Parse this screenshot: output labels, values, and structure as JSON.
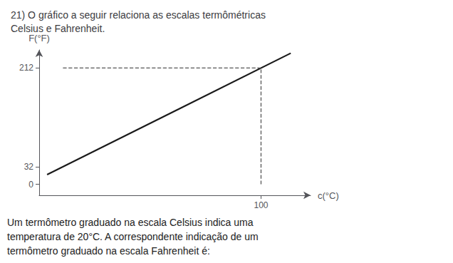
{
  "chart_data": {
    "type": "line",
    "title": "21) O gráfico a seguir relaciona as escalas termômétricas\nCelsius e Fahrenheit.",
    "xlabel": "c(°C)",
    "ylabel": "F(°F)",
    "xlim": [
      -12,
      125
    ],
    "ylim": [
      -20,
      245
    ],
    "xticks": [
      100
    ],
    "yticks": [
      0,
      32,
      212
    ],
    "grid": false,
    "annotations": [
      "Um termômetro graduado na escala Celsius indica uma",
      "temperatura de 20°C. A correspondente indicação de um",
      "termômetro graduado na escala Fahrenheit é:"
    ],
    "series": [
      {
        "x": [
          -8,
          115
        ],
        "values": [
          17.6,
          239
        ],
        "color": "#1a1a1a",
        "line_style": "solid"
      },
      {
        "x": [
          0,
          100
        ],
        "values": [
          212,
          212
        ],
        "color": "#555555",
        "line_style": "dashed"
      },
      {
        "x": [
          100,
          100
        ],
        "values": [
          0,
          212
        ],
        "color": "#555555",
        "line_style": "dashed"
      }
    ]
  }
}
